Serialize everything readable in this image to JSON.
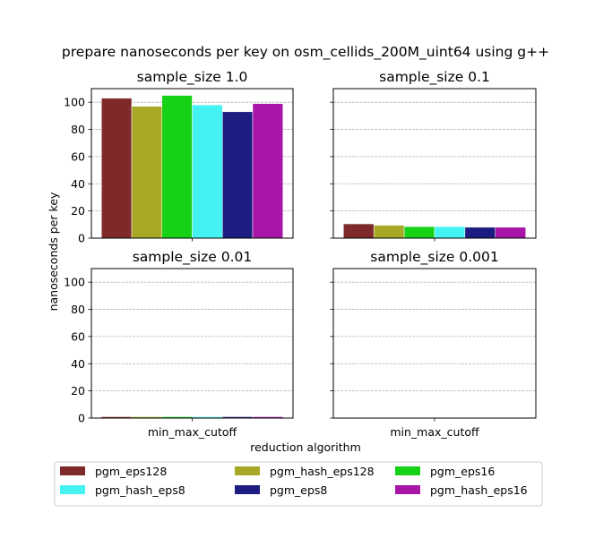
{
  "chart_data": {
    "type": "bar",
    "title": "prepare nanoseconds per key on osm_cellids_200M_uint64 using g++",
    "xlabel": "reduction algorithm",
    "ylabel": "nanoseconds per key",
    "ylim": [
      0,
      110
    ],
    "yticks": [
      0,
      20,
      40,
      60,
      80,
      100
    ],
    "grid": "y",
    "legend_position": "bottom",
    "categories": [
      "min_max_cutoff"
    ],
    "series_meta": [
      {
        "name": "pgm_eps128",
        "color": "#7f2a2a"
      },
      {
        "name": "pgm_hash_eps128",
        "color": "#a8a827"
      },
      {
        "name": "pgm_eps16",
        "color": "#17d117"
      },
      {
        "name": "pgm_hash_eps8",
        "color": "#45f2f2"
      },
      {
        "name": "pgm_eps8",
        "color": "#1c1c81"
      },
      {
        "name": "pgm_hash_eps16",
        "color": "#a816a8"
      }
    ],
    "panels": [
      {
        "title": "sample_size 1.0",
        "values": [
          103,
          97,
          105,
          98,
          93,
          99
        ]
      },
      {
        "title": "sample_size 0.1",
        "values": [
          10.5,
          9.5,
          8.5,
          8.5,
          8,
          8
        ]
      },
      {
        "title": "sample_size 0.01",
        "values": [
          1,
          1,
          1,
          1,
          1,
          1
        ]
      },
      {
        "title": "sample_size 0.001",
        "values": [
          0,
          0,
          0,
          0,
          0,
          0
        ]
      }
    ]
  }
}
